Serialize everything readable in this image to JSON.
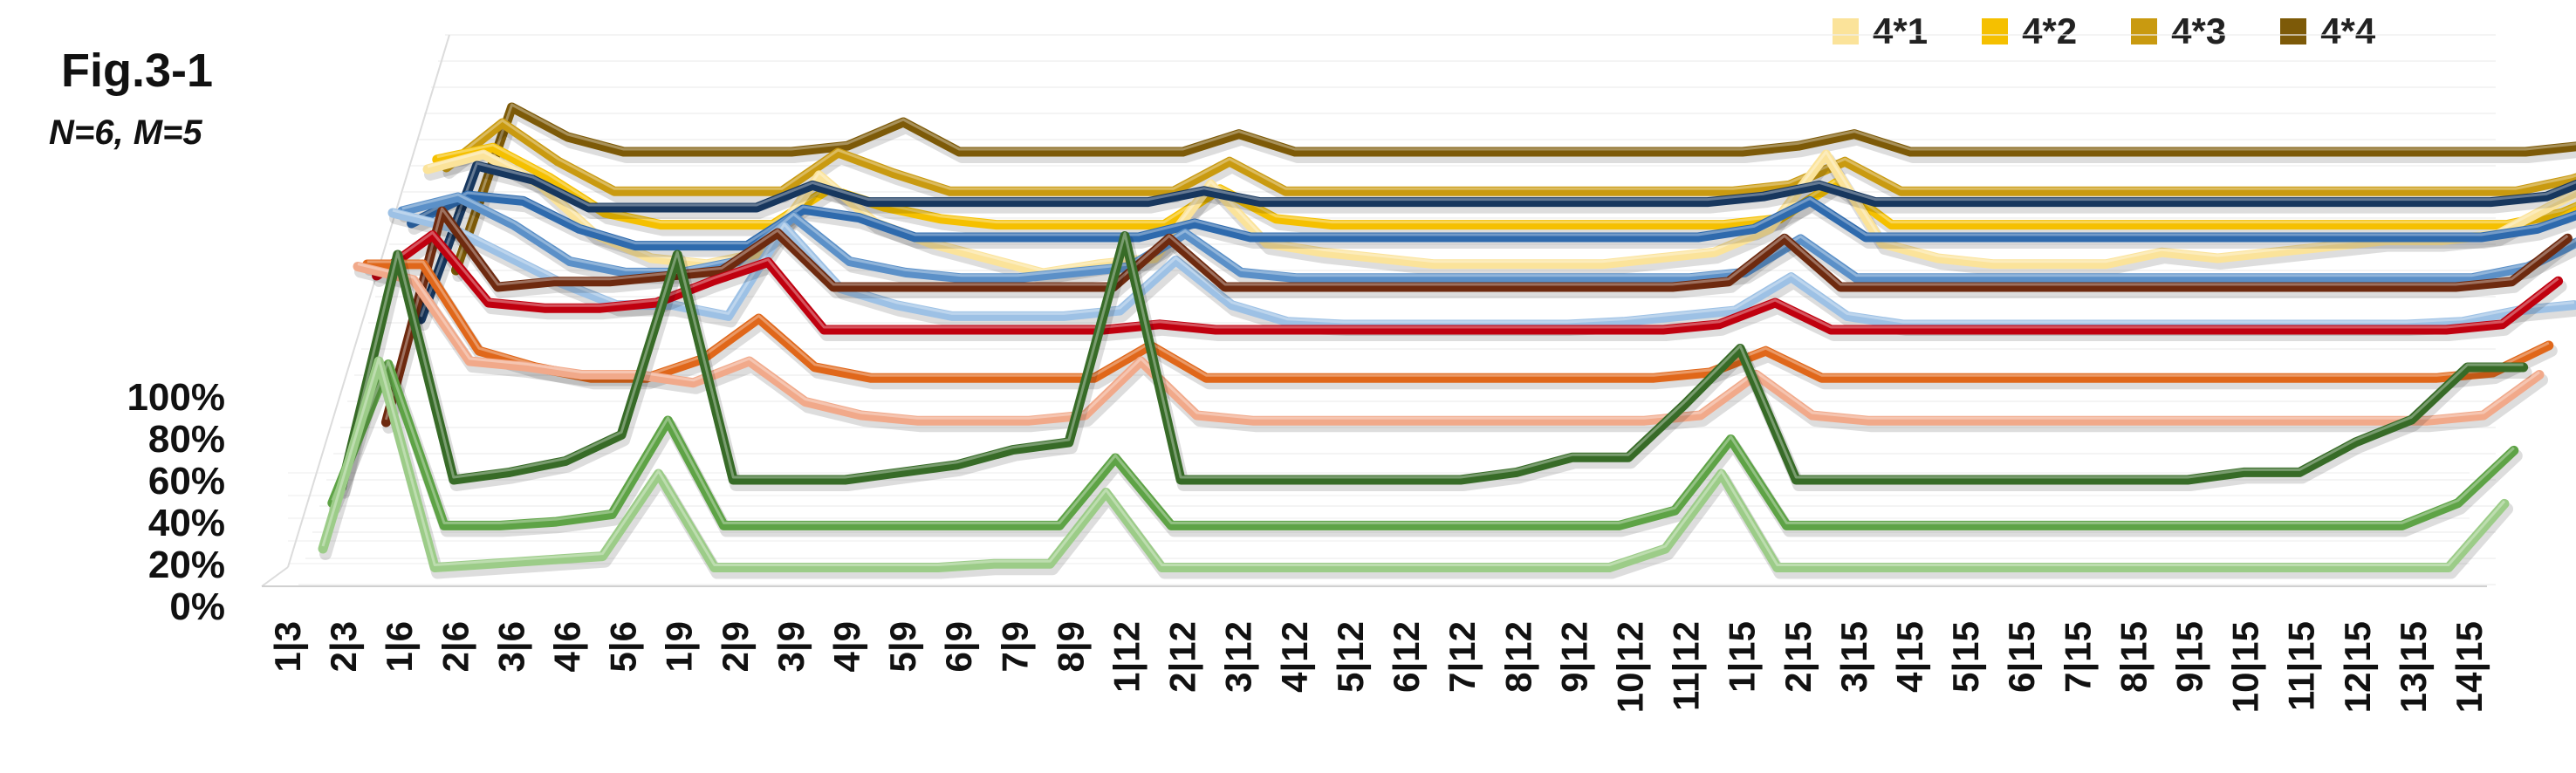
{
  "figure": {
    "title": "Fig.3-1",
    "subtitle": "N=6, M=5"
  },
  "legend": [
    {
      "label": "4*1",
      "color": "#fbe39a"
    },
    {
      "label": "4*2",
      "color": "#f5c000"
    },
    {
      "label": "4*3",
      "color": "#c99a10"
    },
    {
      "label": "4*4",
      "color": "#7d5a08"
    }
  ],
  "chart_data": {
    "type": "line",
    "style": "3d-ribbon",
    "title": "Fig.3-1",
    "subtitle": "N=6, M=5",
    "yticks": [
      "0%",
      "20%",
      "40%",
      "60%",
      "80%",
      "100%"
    ],
    "ylim": [
      0,
      100
    ],
    "grid": true,
    "legend_position": "top-right",
    "categories": [
      "1|3",
      "2|3",
      "1|6",
      "2|6",
      "3|6",
      "4|6",
      "5|6",
      "1|9",
      "2|9",
      "3|9",
      "4|9",
      "5|9",
      "6|9",
      "7|9",
      "8|9",
      "1|12",
      "2|12",
      "3|12",
      "4|12",
      "5|12",
      "6|12",
      "7|12",
      "8|12",
      "9|12",
      "10|12",
      "11|12",
      "1|15",
      "2|15",
      "3|15",
      "4|15",
      "5|15",
      "6|15",
      "7|15",
      "8|15",
      "9|15",
      "10|15",
      "11|15",
      "12|15",
      "13|15",
      "14|15"
    ],
    "series": [
      {
        "group": "green",
        "color": "#9ccc88",
        "values": [
          10,
          60,
          5,
          6,
          7,
          8,
          30,
          5,
          5,
          5,
          5,
          5,
          6,
          6,
          25,
          5,
          5,
          5,
          5,
          5,
          5,
          5,
          5,
          5,
          10,
          30,
          5,
          5,
          5,
          5,
          5,
          5,
          5,
          5,
          5,
          5,
          5,
          5,
          5,
          22
        ]
      },
      {
        "group": "green",
        "color": "#5ea346",
        "values": [
          18,
          55,
          12,
          12,
          13,
          15,
          40,
          12,
          12,
          12,
          12,
          12,
          12,
          12,
          30,
          12,
          12,
          12,
          12,
          12,
          12,
          12,
          12,
          12,
          16,
          35,
          12,
          12,
          12,
          12,
          12,
          12,
          12,
          12,
          12,
          12,
          12,
          12,
          18,
          32
        ]
      },
      {
        "group": "green",
        "color": "#376b27",
        "values": [
          18,
          80,
          20,
          22,
          25,
          32,
          80,
          20,
          20,
          20,
          22,
          24,
          28,
          30,
          85,
          20,
          20,
          20,
          20,
          20,
          20,
          22,
          26,
          26,
          40,
          55,
          20,
          20,
          20,
          20,
          20,
          20,
          20,
          20,
          22,
          22,
          30,
          36,
          50,
          50
        ]
      },
      {
        "group": "red",
        "color": "#f1a98a",
        "values": [
          95,
          90,
          60,
          58,
          55,
          55,
          52,
          60,
          45,
          40,
          38,
          38,
          38,
          40,
          60,
          40,
          38,
          38,
          38,
          38,
          38,
          38,
          38,
          38,
          40,
          55,
          40,
          38,
          38,
          38,
          38,
          38,
          38,
          38,
          38,
          38,
          38,
          38,
          40,
          55
        ]
      },
      {
        "group": "red",
        "color": "#e0671a",
        "values": [
          90,
          90,
          58,
          52,
          48,
          48,
          55,
          70,
          52,
          48,
          48,
          48,
          48,
          48,
          60,
          48,
          48,
          48,
          48,
          48,
          48,
          48,
          48,
          48,
          50,
          58,
          48,
          48,
          48,
          48,
          48,
          48,
          48,
          48,
          48,
          48,
          48,
          48,
          50,
          60
        ]
      },
      {
        "group": "red",
        "color": "#c0000f",
        "values": [
          80,
          95,
          70,
          68,
          68,
          70,
          78,
          85,
          60,
          60,
          60,
          60,
          60,
          60,
          62,
          60,
          60,
          60,
          60,
          60,
          60,
          60,
          60,
          60,
          62,
          70,
          60,
          60,
          60,
          60,
          60,
          60,
          60,
          60,
          60,
          60,
          60,
          60,
          62,
          78
        ]
      },
      {
        "group": "red",
        "color": "#6e2a0f",
        "values": [
          20,
          98,
          70,
          72,
          72,
          74,
          76,
          90,
          70,
          70,
          70,
          70,
          70,
          70,
          88,
          70,
          70,
          70,
          70,
          70,
          70,
          70,
          70,
          70,
          72,
          88,
          70,
          70,
          70,
          70,
          70,
          70,
          70,
          70,
          70,
          70,
          70,
          70,
          72,
          88
        ]
      },
      {
        "group": "blue",
        "color": "#9dc1e5",
        "values": [
          95,
          90,
          80,
          70,
          62,
          62,
          58,
          90,
          68,
          62,
          58,
          58,
          58,
          60,
          78,
          62,
          56,
          55,
          55,
          55,
          55,
          55,
          56,
          58,
          60,
          72,
          58,
          55,
          55,
          55,
          55,
          55,
          55,
          55,
          55,
          55,
          55,
          56,
          60,
          62
        ]
      },
      {
        "group": "blue",
        "color": "#5b90c8",
        "values": [
          90,
          95,
          85,
          72,
          68,
          68,
          72,
          88,
          72,
          68,
          66,
          66,
          68,
          70,
          82,
          68,
          66,
          66,
          66,
          66,
          66,
          66,
          66,
          66,
          68,
          80,
          66,
          66,
          66,
          66,
          66,
          66,
          66,
          66,
          66,
          66,
          66,
          66,
          70,
          80
        ]
      },
      {
        "group": "blue",
        "color": "#2e6aad",
        "values": [
          80,
          90,
          88,
          78,
          72,
          72,
          72,
          85,
          82,
          75,
          75,
          75,
          75,
          75,
          80,
          75,
          75,
          75,
          75,
          75,
          75,
          75,
          75,
          75,
          78,
          88,
          75,
          75,
          75,
          75,
          75,
          75,
          75,
          75,
          75,
          75,
          75,
          75,
          78,
          85
        ]
      },
      {
        "group": "blue",
        "color": "#17375e",
        "values": [
          40,
          95,
          90,
          80,
          80,
          80,
          80,
          88,
          82,
          82,
          82,
          82,
          82,
          82,
          86,
          82,
          82,
          82,
          82,
          82,
          82,
          82,
          82,
          82,
          84,
          88,
          82,
          82,
          82,
          82,
          82,
          82,
          82,
          82,
          82,
          82,
          82,
          82,
          84,
          92
        ]
      },
      {
        "group": "yellow",
        "color": "#fbe39a",
        "values": [
          90,
          95,
          85,
          68,
          60,
          58,
          62,
          88,
          72,
          65,
          60,
          55,
          58,
          60,
          85,
          65,
          62,
          60,
          58,
          58,
          58,
          58,
          60,
          62,
          70,
          95,
          65,
          60,
          58,
          58,
          58,
          62,
          60,
          62,
          64,
          66,
          66,
          68,
          78,
          88
        ]
      },
      {
        "group": "yellow",
        "color": "#f5c000",
        "values": [
          88,
          92,
          82,
          70,
          66,
          66,
          66,
          78,
          72,
          68,
          66,
          66,
          66,
          66,
          78,
          68,
          66,
          66,
          66,
          66,
          66,
          66,
          66,
          66,
          68,
          80,
          66,
          66,
          66,
          66,
          66,
          66,
          66,
          66,
          66,
          66,
          66,
          66,
          70,
          78
        ]
      },
      {
        "group": "yellow",
        "color": "#c99a10",
        "values": [
          80,
          95,
          82,
          72,
          72,
          72,
          72,
          85,
          78,
          72,
          72,
          72,
          72,
          72,
          82,
          72,
          72,
          72,
          72,
          72,
          72,
          72,
          72,
          72,
          74,
          82,
          72,
          72,
          72,
          72,
          72,
          72,
          72,
          72,
          72,
          72,
          72,
          72,
          76,
          82
        ]
      },
      {
        "group": "yellow",
        "color": "#7d5a08",
        "values": [
          40,
          95,
          85,
          80,
          80,
          80,
          80,
          82,
          90,
          80,
          80,
          80,
          80,
          80,
          86,
          80,
          80,
          80,
          80,
          80,
          80,
          80,
          80,
          80,
          82,
          86,
          80,
          80,
          80,
          80,
          80,
          80,
          80,
          80,
          80,
          80,
          80,
          80,
          82,
          86
        ]
      }
    ]
  }
}
